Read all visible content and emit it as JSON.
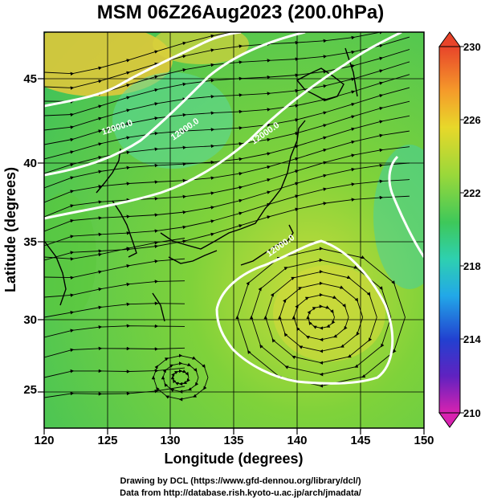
{
  "title": "MSM 06Z26Aug2023 (200.0hPa)",
  "xaxis": {
    "label": "Longitude (degrees)",
    "ticks": [
      "120",
      "125",
      "130",
      "135",
      "140",
      "145",
      "150"
    ]
  },
  "yaxis": {
    "label": "Latitude  (degrees)",
    "ticks": [
      "25",
      "30",
      "35",
      "40",
      "45"
    ]
  },
  "colorbar": {
    "ticks": [
      "230",
      "226",
      "222",
      "218",
      "214",
      "210"
    ]
  },
  "contour_labels": [
    "12000.0",
    "12000.0",
    "12000.0",
    "12000.0"
  ],
  "footer": {
    "line1": "Drawing by DCL (https://www.gfd-dennou.org/library/dcl/)",
    "line2": "Data from http://database.rish.kyoto-u.ac.jp/arch/jmadata/"
  },
  "chart_data": {
    "type": "heatmap",
    "title": "MSM 06Z26Aug2023 (200.0hPa)",
    "xlabel": "Longitude (degrees)",
    "ylabel": "Latitude  (degrees)",
    "xlim": [
      120,
      150
    ],
    "ylim": [
      22.4,
      47.6
    ],
    "colorbar_range": [
      210,
      230
    ],
    "colorbar_ticks": [
      230,
      226,
      222,
      218,
      214,
      210
    ],
    "contour_level": 12000.0,
    "features": [
      "streamlines",
      "coastlines",
      "height contours (white)",
      "anticyclone near 142E 29N"
    ]
  }
}
